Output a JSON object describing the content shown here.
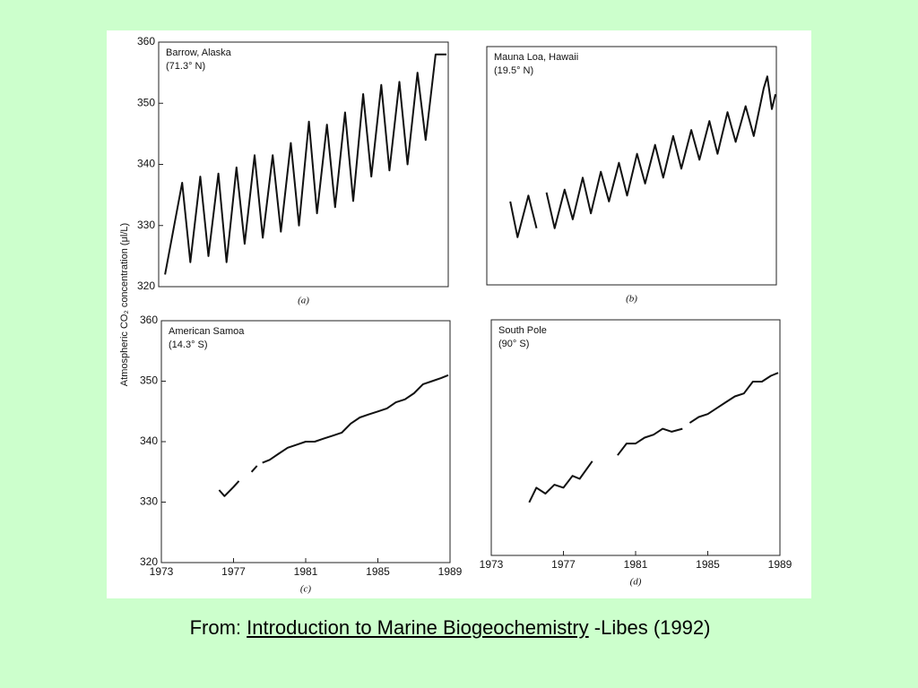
{
  "figure": {
    "ylabel": "Atmospheric CO₂ concentration (μl/L)"
  },
  "caption": {
    "prefix": "From:",
    "source": "Introduction to Marine Biogeochemistry",
    "suffix": "-Libes (1992)"
  },
  "chart_data": [
    {
      "type": "line",
      "title": "Barrow, Alaska",
      "subtitle": "(71.3° N)",
      "panel_label": "(a)",
      "color": "#111111",
      "xlim": [
        1973,
        1989
      ],
      "ylim": [
        320,
        360
      ],
      "yticks": [
        320,
        330,
        340,
        350,
        360
      ],
      "x": [
        1973.35,
        1974.3,
        1974.75,
        1975.3,
        1975.75,
        1976.3,
        1976.75,
        1977.3,
        1977.75,
        1978.3,
        1978.75,
        1979.3,
        1979.75,
        1980.3,
        1980.75,
        1981.3,
        1981.75,
        1982.3,
        1982.75,
        1983.3,
        1983.75,
        1984.3,
        1984.75,
        1985.3,
        1985.75,
        1986.3,
        1986.75,
        1987.3,
        1987.75,
        1988.3,
        1988.9
      ],
      "values": [
        322,
        337,
        324,
        338,
        325,
        338.5,
        324,
        339.5,
        327,
        341.5,
        328,
        341.5,
        329,
        343.5,
        330,
        347,
        332,
        346.5,
        333,
        348.5,
        334,
        351.5,
        338,
        353,
        339,
        353.5,
        340,
        355,
        344,
        358,
        358
      ]
    },
    {
      "type": "line",
      "title": "Mauna Loa, Hawaii",
      "subtitle": "(19.5° N)",
      "panel_label": "(b)",
      "color": "#111111",
      "xlim": [
        1973,
        1989
      ],
      "ylim": [
        320,
        360
      ],
      "x": [
        1974.3,
        1974.7,
        1975.3,
        1975.75,
        null,
        1976.3,
        1976.75,
        1977.3,
        1977.75,
        1978.3,
        1978.75,
        1979.3,
        1979.75,
        1980.3,
        1980.75,
        1981.3,
        1981.75,
        1982.3,
        1982.75,
        1983.3,
        1983.75,
        1984.3,
        1984.75,
        1985.3,
        1985.75,
        1986.3,
        1986.75,
        1987.3,
        1987.75,
        1988.3,
        1988.5,
        1988.75,
        1988.95
      ],
      "values": [
        334,
        328,
        335,
        329.5,
        null,
        335.5,
        329.5,
        336,
        331,
        338,
        332,
        339,
        334,
        340.5,
        335,
        342,
        337,
        343.5,
        338,
        345,
        339.5,
        346,
        341,
        347.5,
        342,
        349,
        344,
        350,
        345,
        353,
        355,
        349.5,
        352
      ]
    },
    {
      "type": "line",
      "title": "American Samoa",
      "subtitle": "(14.3° S)",
      "panel_label": "(c)",
      "color": "#111111",
      "xlim": [
        1973,
        1989
      ],
      "ylim": [
        320,
        360
      ],
      "yticks": [
        320,
        330,
        340,
        350,
        360
      ],
      "xticks": [
        1973,
        1977,
        1981,
        1985,
        1989
      ],
      "x": [
        1976.2,
        1976.5,
        1977.0,
        1977.3,
        null,
        1978.0,
        1978.3,
        null,
        1978.6,
        1979,
        1979.5,
        1980,
        1980.5,
        1981,
        1981.5,
        1982,
        1982.5,
        1983,
        1983.5,
        1984,
        1984.5,
        1985,
        1985.5,
        1986,
        1986.5,
        1987,
        1987.5,
        1988,
        1988.5,
        1988.9
      ],
      "values": [
        332,
        331,
        332.5,
        333.5,
        null,
        335,
        336,
        null,
        336.5,
        337,
        338,
        339,
        339.5,
        340,
        340,
        340.5,
        341,
        341.5,
        343,
        344,
        344.5,
        345,
        345.5,
        346.5,
        347,
        348,
        349.5,
        350,
        350.5,
        351
      ]
    },
    {
      "type": "line",
      "title": "South Pole",
      "subtitle": "(90° S)",
      "panel_label": "(d)",
      "color": "#111111",
      "xlim": [
        1973,
        1989
      ],
      "ylim": [
        320,
        360
      ],
      "xticks": [
        1973,
        1977,
        1981,
        1985,
        1989
      ],
      "x": [
        1975.1,
        1975.5,
        1976,
        1976.5,
        1977,
        1977.5,
        1977.9,
        1978.6,
        null,
        1980,
        1980.5,
        1981,
        1981.5,
        1982,
        1982.5,
        1983,
        1983.6,
        null,
        1984,
        1984.5,
        1985,
        1985.5,
        1986,
        1986.5,
        1987,
        1987.5,
        1988,
        1988.5,
        1988.9
      ],
      "values": [
        329,
        331.5,
        330.5,
        332,
        331.5,
        333.5,
        333,
        336,
        null,
        337,
        339,
        339,
        340,
        340.5,
        341.5,
        341,
        341.5,
        null,
        342.5,
        343.5,
        344,
        345,
        346,
        347,
        347.5,
        349.5,
        349.5,
        350.5,
        351
      ]
    }
  ]
}
